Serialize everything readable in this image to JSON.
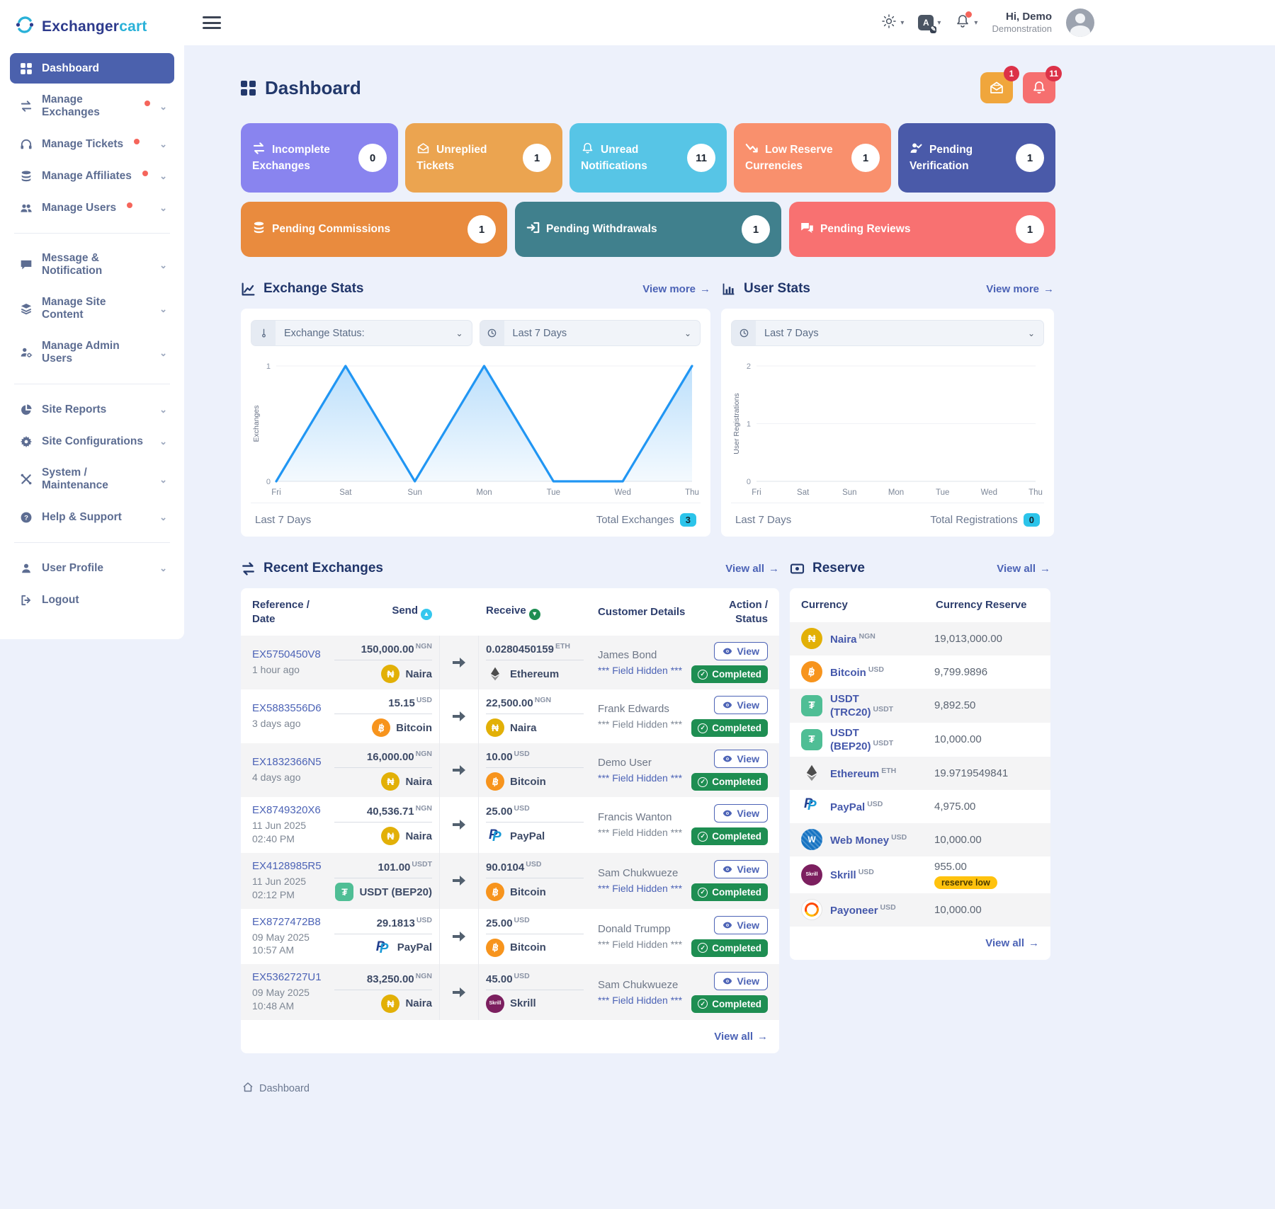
{
  "brand": {
    "name_a": "Exchanger",
    "name_b": "cart"
  },
  "header": {
    "greeting": "Hi, Demo",
    "role": "Demonstration",
    "icons": [
      "sun-icon",
      "translate-icon",
      "bell-icon"
    ]
  },
  "floating": {
    "mail_badge": "1",
    "bell_badge": "11"
  },
  "sidebar": {
    "items": [
      {
        "label": "Dashboard",
        "icon": "grid-icon",
        "active": true
      },
      {
        "label": "Manage Exchanges",
        "icon": "exchange-icon",
        "dot": true
      },
      {
        "label": "Manage Tickets",
        "icon": "headset-icon",
        "dot": true
      },
      {
        "label": "Manage Affiliates",
        "icon": "coins-icon",
        "dot": true
      },
      {
        "label": "Manage Users",
        "icon": "users-icon",
        "dot": true
      },
      {
        "label": "Message & Notification",
        "icon": "chat-icon"
      },
      {
        "label": "Manage Site Content",
        "icon": "layers-icon"
      },
      {
        "label": "Manage Admin Users",
        "icon": "user-gear-icon"
      },
      {
        "label": "Site Reports",
        "icon": "pie-icon"
      },
      {
        "label": "Site Configurations",
        "icon": "gear-icon"
      },
      {
        "label": "System / Maintenance",
        "icon": "tools-icon"
      },
      {
        "label": "Help & Support",
        "icon": "help-icon"
      },
      {
        "label": "User Profile",
        "icon": "user-icon"
      },
      {
        "label": "Logout",
        "icon": "logout-icon"
      }
    ]
  },
  "page": {
    "title": "Dashboard",
    "breadcrumb": "Dashboard"
  },
  "cards": [
    {
      "label": "Incomplete Exchanges",
      "count": "0",
      "color": "#8984ef",
      "icon": "exchange-icon"
    },
    {
      "label": "Unreplied Tickets",
      "count": "1",
      "color": "#eba450",
      "icon": "mail-icon"
    },
    {
      "label": "Unread Notifications",
      "count": "11",
      "color": "#57c5e6",
      "icon": "bell-icon"
    },
    {
      "label": "Low Reserve Currencies",
      "count": "1",
      "color": "#f9906d",
      "icon": "trend-down-icon"
    },
    {
      "label": "Pending Verification",
      "count": "1",
      "color": "#4a5aa9",
      "icon": "user-check-icon"
    },
    {
      "label": "Pending Commissions",
      "count": "1",
      "color": "#e98b3e",
      "icon": "coins-icon"
    },
    {
      "label": "Pending Withdrawals",
      "count": "1",
      "color": "#40808d",
      "icon": "withdraw-icon"
    },
    {
      "label": "Pending Reviews",
      "count": "1",
      "color": "#f87171",
      "icon": "reviews-icon"
    }
  ],
  "exchange_stats": {
    "title": "Exchange Stats",
    "view_more": "View more",
    "status_filter": "Exchange Status:",
    "period": "Last 7 Days",
    "footer_period": "Last 7 Days",
    "total_label": "Total Exchanges",
    "total_value": "3"
  },
  "user_stats": {
    "title": "User Stats",
    "view_more": "View more",
    "period": "Last 7 Days",
    "footer_period": "Last 7 Days",
    "total_label": "Total Registrations",
    "total_value": "0"
  },
  "chart_data": [
    {
      "type": "area",
      "title": "Exchange Stats",
      "x": [
        "Fri",
        "Sat",
        "Sun",
        "Mon",
        "Tue",
        "Wed",
        "Thu"
      ],
      "series": [
        {
          "name": "Exchanges",
          "values": [
            0,
            1,
            0,
            1,
            0,
            0,
            1
          ]
        }
      ],
      "ylabel": "Exchanges",
      "ylim": [
        0,
        1
      ],
      "yticks": [
        0,
        1
      ],
      "color": "#2196f3",
      "grid": true,
      "legend": "none"
    },
    {
      "type": "line",
      "title": "User Stats",
      "x": [
        "Fri",
        "Sat",
        "Sun",
        "Mon",
        "Tue",
        "Wed",
        "Thu"
      ],
      "series": [
        {
          "name": "User Registrations",
          "values": []
        }
      ],
      "ylabel": "User Registrations",
      "ylim": [
        0,
        2
      ],
      "yticks": [
        0,
        1,
        2
      ],
      "color": "#2196f3",
      "grid": true,
      "legend": "none"
    }
  ],
  "recent_exchanges": {
    "title": "Recent Exchanges",
    "view_all": "View all",
    "view_label": "View",
    "headers": {
      "ref": "Reference / Date",
      "send": "Send",
      "receive": "Receive",
      "customer": "Customer Details",
      "action": "Action / Status"
    },
    "rows": [
      {
        "ref": "EX5750450V8",
        "date1": "1 hour ago",
        "date2": "",
        "send": {
          "amount": "150,000.00",
          "unit": "NGN",
          "name": "Naira",
          "icon": "naira-icon"
        },
        "recv": {
          "amount": "0.0280450159",
          "unit": "ETH",
          "name": "Ethereum",
          "icon": "ethereum-icon"
        },
        "customer": "James Bond",
        "hidden": "*** Field Hidden ***",
        "status": "Completed"
      },
      {
        "ref": "EX5883556D6",
        "date1": "3 days ago",
        "date2": "",
        "send": {
          "amount": "15.15",
          "unit": "USD",
          "name": "Bitcoin",
          "icon": "bitcoin-icon"
        },
        "recv": {
          "amount": "22,500.00",
          "unit": "NGN",
          "name": "Naira",
          "icon": "naira-icon"
        },
        "customer": "Frank Edwards",
        "hidden": "*** Field Hidden ***",
        "status": "Completed"
      },
      {
        "ref": "EX1832366N5",
        "date1": "4 days ago",
        "date2": "",
        "send": {
          "amount": "16,000.00",
          "unit": "NGN",
          "name": "Naira",
          "icon": "naira-icon"
        },
        "recv": {
          "amount": "10.00",
          "unit": "USD",
          "name": "Bitcoin",
          "icon": "bitcoin-icon"
        },
        "customer": "Demo User",
        "hidden": "*** Field Hidden ***",
        "status": "Completed"
      },
      {
        "ref": "EX8749320X6",
        "date1": "11 Jun 2025",
        "date2": "02:40 PM",
        "send": {
          "amount": "40,536.71",
          "unit": "NGN",
          "name": "Naira",
          "icon": "naira-icon"
        },
        "recv": {
          "amount": "25.00",
          "unit": "USD",
          "name": "PayPal",
          "icon": "paypal-icon"
        },
        "customer": "Francis Wanton",
        "hidden": "*** Field Hidden ***",
        "status": "Completed"
      },
      {
        "ref": "EX4128985R5",
        "date1": "11 Jun 2025",
        "date2": "02:12 PM",
        "send": {
          "amount": "101.00",
          "unit": "USDT",
          "name": "USDT (BEP20)",
          "icon": "usdt-icon"
        },
        "recv": {
          "amount": "90.0104",
          "unit": "USD",
          "name": "Bitcoin",
          "icon": "bitcoin-icon"
        },
        "customer": "Sam Chukwueze",
        "hidden": "*** Field Hidden ***",
        "status": "Completed"
      },
      {
        "ref": "EX8727472B8",
        "date1": "09 May 2025",
        "date2": "10:57 AM",
        "send": {
          "amount": "29.1813",
          "unit": "USD",
          "name": "PayPal",
          "icon": "paypal-icon"
        },
        "recv": {
          "amount": "25.00",
          "unit": "USD",
          "name": "Bitcoin",
          "icon": "bitcoin-icon"
        },
        "customer": "Donald Trumpp",
        "hidden": "*** Field Hidden ***",
        "status": "Completed"
      },
      {
        "ref": "EX5362727U1",
        "date1": "09 May 2025",
        "date2": "10:48 AM",
        "send": {
          "amount": "83,250.00",
          "unit": "NGN",
          "name": "Naira",
          "icon": "naira-icon"
        },
        "recv": {
          "amount": "45.00",
          "unit": "USD",
          "name": "Skrill",
          "icon": "skrill-icon"
        },
        "customer": "Sam Chukwueze",
        "hidden": "*** Field Hidden ***",
        "status": "Completed"
      }
    ]
  },
  "reserve": {
    "title": "Reserve",
    "view_all": "View all",
    "low_badge": "reserve low",
    "headers": {
      "currency": "Currency",
      "amount": "Currency Reserve"
    },
    "rows": [
      {
        "name": "Naira",
        "code": "NGN",
        "amount": "19,013,000.00",
        "icon": "naira-icon"
      },
      {
        "name": "Bitcoin",
        "code": "USD",
        "amount": "9,799.9896",
        "icon": "bitcoin-icon"
      },
      {
        "name": "USDT (TRC20)",
        "code": "USDT",
        "amount": "9,892.50",
        "icon": "usdt-icon"
      },
      {
        "name": "USDT (BEP20)",
        "code": "USDT",
        "amount": "10,000.00",
        "icon": "usdt-icon"
      },
      {
        "name": "Ethereum",
        "code": "ETH",
        "amount": "19.9719549841",
        "icon": "ethereum-icon"
      },
      {
        "name": "PayPal",
        "code": "USD",
        "amount": "4,975.00",
        "icon": "paypal-icon"
      },
      {
        "name": "Web Money",
        "code": "USD",
        "amount": "10,000.00",
        "icon": "webmoney-icon"
      },
      {
        "name": "Skrill",
        "code": "USD",
        "amount": "955.00",
        "icon": "skrill-icon",
        "low": true
      },
      {
        "name": "Payoneer",
        "code": "USD",
        "amount": "10,000.00",
        "icon": "payoneer-icon"
      }
    ]
  }
}
